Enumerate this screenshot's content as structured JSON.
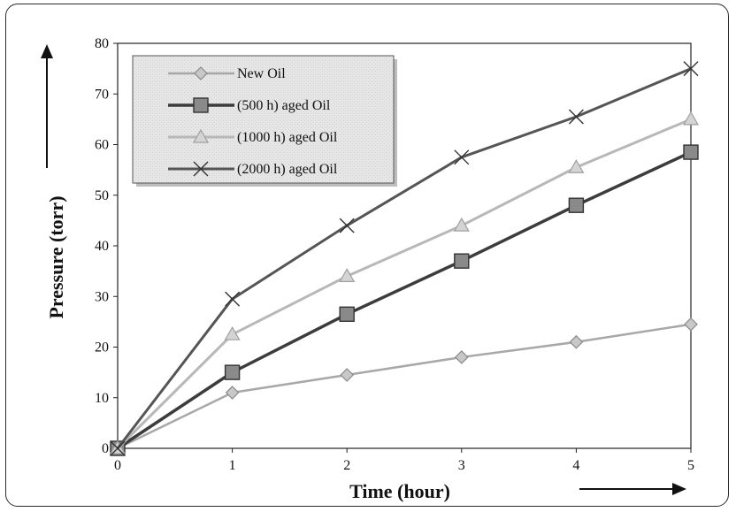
{
  "chart_data": {
    "type": "line",
    "x": [
      0,
      1,
      2,
      3,
      4,
      5
    ],
    "xlabel": "Time (hour)",
    "ylabel": "Pressure (torr)",
    "xlim": [
      0,
      5
    ],
    "ylim": [
      0,
      80
    ],
    "xticks": [
      0,
      1,
      2,
      3,
      4,
      5
    ],
    "yticks": [
      0,
      10,
      20,
      30,
      40,
      50,
      60,
      70,
      80
    ],
    "grid": "horizontal",
    "legend_position": "top-left",
    "series": [
      {
        "name": "New Oil",
        "values": [
          0,
          11,
          14.5,
          18,
          21,
          24.5
        ],
        "color": "#a8a8a8",
        "marker": "diamond"
      },
      {
        "name": "(500 h) aged Oil",
        "values": [
          0,
          15,
          26.5,
          37,
          48,
          58.5
        ],
        "color": "#3c3c3c",
        "marker": "square"
      },
      {
        "name": "(1000 h) aged Oil",
        "values": [
          0,
          22.5,
          34,
          44,
          55.5,
          65
        ],
        "color": "#b8b8b8",
        "marker": "triangle"
      },
      {
        "name": "(2000 h) aged Oil",
        "values": [
          0,
          29.5,
          44,
          57.5,
          65.5,
          75
        ],
        "color": "#555555",
        "marker": "x"
      }
    ]
  }
}
